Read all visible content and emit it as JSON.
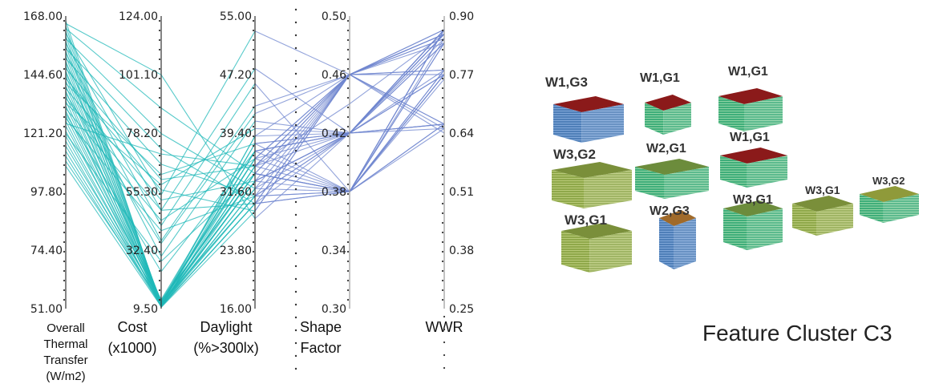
{
  "chart_data": {
    "type": "parallel-coordinates",
    "axes": [
      {
        "label": [
          "Overall",
          "Thermal",
          "Transfer",
          "(W/m2)"
        ],
        "range": [
          51.0,
          168.0
        ],
        "ticks": [
          "168.00",
          "144.60",
          "121.20",
          "97.80",
          "74.40",
          "51.00"
        ]
      },
      {
        "label": [
          "Cost",
          "(x1000)"
        ],
        "range": [
          9.5,
          124.0
        ],
        "ticks": [
          "124.00",
          "101.10",
          "78.20",
          "55.30",
          "32.40",
          "9.50"
        ]
      },
      {
        "label": [
          "Daylight",
          "(%>300lx)"
        ],
        "range": [
          16.0,
          55.0
        ],
        "ticks": [
          "55.00",
          "47.20",
          "39.40",
          "31.60",
          "23.80",
          "16.00"
        ]
      },
      {
        "label": [
          "Shape",
          "Factor"
        ],
        "range": [
          0.3,
          0.5
        ],
        "ticks": [
          "0.50",
          "0.46",
          "0.42",
          "0.38",
          "0.34",
          "0.30"
        ]
      },
      {
        "label": [
          "WWR"
        ],
        "range": [
          0.25,
          0.9
        ],
        "ticks": [
          "0.90",
          "0.77",
          "0.64",
          "0.51",
          "0.38",
          "0.25"
        ]
      }
    ],
    "colors": {
      "primary": "#1fb8b8",
      "secondary": "#6f86cf"
    },
    "series": [
      {
        "values": [
          166,
          10.5,
          34,
          0.46,
          0.87
        ]
      },
      {
        "values": [
          164,
          10.8,
          33,
          0.42,
          0.84
        ]
      },
      {
        "values": [
          162,
          11.2,
          31,
          0.38,
          0.78
        ]
      },
      {
        "values": [
          160,
          11.0,
          35,
          0.44,
          0.86
        ]
      },
      {
        "values": [
          158,
          10.2,
          30,
          0.42,
          0.66
        ]
      },
      {
        "values": [
          156,
          12.0,
          36,
          0.46,
          0.85
        ]
      },
      {
        "values": [
          154,
          10.5,
          32,
          0.38,
          0.76
        ]
      },
      {
        "values": [
          152,
          11.5,
          37,
          0.42,
          0.87
        ]
      },
      {
        "values": [
          150,
          10.0,
          29,
          0.46,
          0.66
        ]
      },
      {
        "values": [
          148,
          12.5,
          34,
          0.38,
          0.84
        ]
      },
      {
        "values": [
          146,
          10.8,
          38,
          0.42,
          0.77
        ]
      },
      {
        "values": [
          144,
          11.2,
          33,
          0.46,
          0.86
        ]
      },
      {
        "values": [
          142,
          10.4,
          31,
          0.42,
          0.65
        ]
      },
      {
        "values": [
          140,
          12.8,
          36,
          0.38,
          0.87
        ]
      },
      {
        "values": [
          138,
          10.6,
          35,
          0.46,
          0.78
        ]
      },
      {
        "values": [
          136,
          11.8,
          39,
          0.42,
          0.86
        ]
      },
      {
        "values": [
          134,
          10.3,
          30,
          0.38,
          0.66
        ]
      },
      {
        "values": [
          132,
          12.2,
          34,
          0.46,
          0.85
        ]
      },
      {
        "values": [
          130,
          10.9,
          37,
          0.42,
          0.77
        ]
      },
      {
        "values": [
          128,
          11.4,
          33,
          0.38,
          0.87
        ]
      },
      {
        "values": [
          126,
          10.1,
          32,
          0.46,
          0.64
        ]
      },
      {
        "values": [
          124,
          13.0,
          38,
          0.42,
          0.84
        ]
      },
      {
        "values": [
          122,
          10.7,
          35,
          0.38,
          0.78
        ]
      },
      {
        "values": [
          120,
          11.6,
          31,
          0.46,
          0.86
        ]
      },
      {
        "values": [
          118,
          10.2,
          36,
          0.42,
          0.66
        ]
      },
      {
        "values": [
          116,
          12.4,
          34,
          0.38,
          0.87
        ]
      },
      {
        "values": [
          114,
          11.0,
          39,
          0.46,
          0.77
        ]
      },
      {
        "values": [
          112,
          10.5,
          33,
          0.42,
          0.85
        ]
      },
      {
        "values": [
          110,
          11.9,
          37,
          0.38,
          0.65
        ]
      },
      {
        "values": [
          108,
          10.3,
          30,
          0.46,
          0.86
        ]
      },
      {
        "values": [
          165,
          101,
          28,
          0.42,
          0.86
        ]
      },
      {
        "values": [
          163,
          88,
          34,
          0.38,
          0.77
        ]
      },
      {
        "values": [
          159,
          78,
          32,
          0.42,
          0.87
        ]
      },
      {
        "values": [
          155,
          72,
          30,
          0.46,
          0.84
        ]
      },
      {
        "values": [
          151,
          66,
          31,
          0.38,
          0.66
        ]
      },
      {
        "values": [
          147,
          60,
          35,
          0.42,
          0.86
        ]
      },
      {
        "values": [
          143,
          56,
          29,
          0.46,
          0.78
        ]
      },
      {
        "values": [
          139,
          52,
          33,
          0.42,
          0.87
        ]
      },
      {
        "values": [
          135,
          48,
          30,
          0.38,
          0.85
        ]
      },
      {
        "values": [
          131,
          44,
          36,
          0.46,
          0.77
        ]
      },
      {
        "values": [
          127,
          40,
          31,
          0.42,
          0.66
        ]
      },
      {
        "values": [
          161,
          54,
          53,
          0.46,
          0.86
        ]
      },
      {
        "values": [
          157,
          48,
          48,
          0.42,
          0.87
        ]
      },
      {
        "values": [
          153,
          42,
          46,
          0.38,
          0.77
        ]
      },
      {
        "values": [
          149,
          36,
          43,
          0.46,
          0.65
        ]
      },
      {
        "values": [
          145,
          30,
          41,
          0.42,
          0.86
        ]
      },
      {
        "values": [
          141,
          62,
          38,
          0.38,
          0.84
        ]
      },
      {
        "values": [
          137,
          35,
          42,
          0.46,
          0.87
        ]
      },
      {
        "values": [
          133,
          58,
          40,
          0.42,
          0.78
        ]
      },
      {
        "values": [
          129,
          24,
          37,
          0.42,
          0.86
        ]
      },
      {
        "values": [
          125,
          70,
          35,
          0.46,
          0.66
        ]
      },
      {
        "values": [
          121,
          28,
          34,
          0.38,
          0.77
        ]
      }
    ]
  },
  "buildings": [
    {
      "label": "W1,G3"
    },
    {
      "label": "W1,G1"
    },
    {
      "label": "W1,G1"
    },
    {
      "label": "W3,G2"
    },
    {
      "label": "W2,G1"
    },
    {
      "label": "W1,G1"
    },
    {
      "label": "W3,G1"
    },
    {
      "label": "W2,G3"
    },
    {
      "label": "W3,G1"
    },
    {
      "label": "W3,G1"
    },
    {
      "label": "W3,G2"
    }
  ],
  "cluster_title": "Feature Cluster C3"
}
